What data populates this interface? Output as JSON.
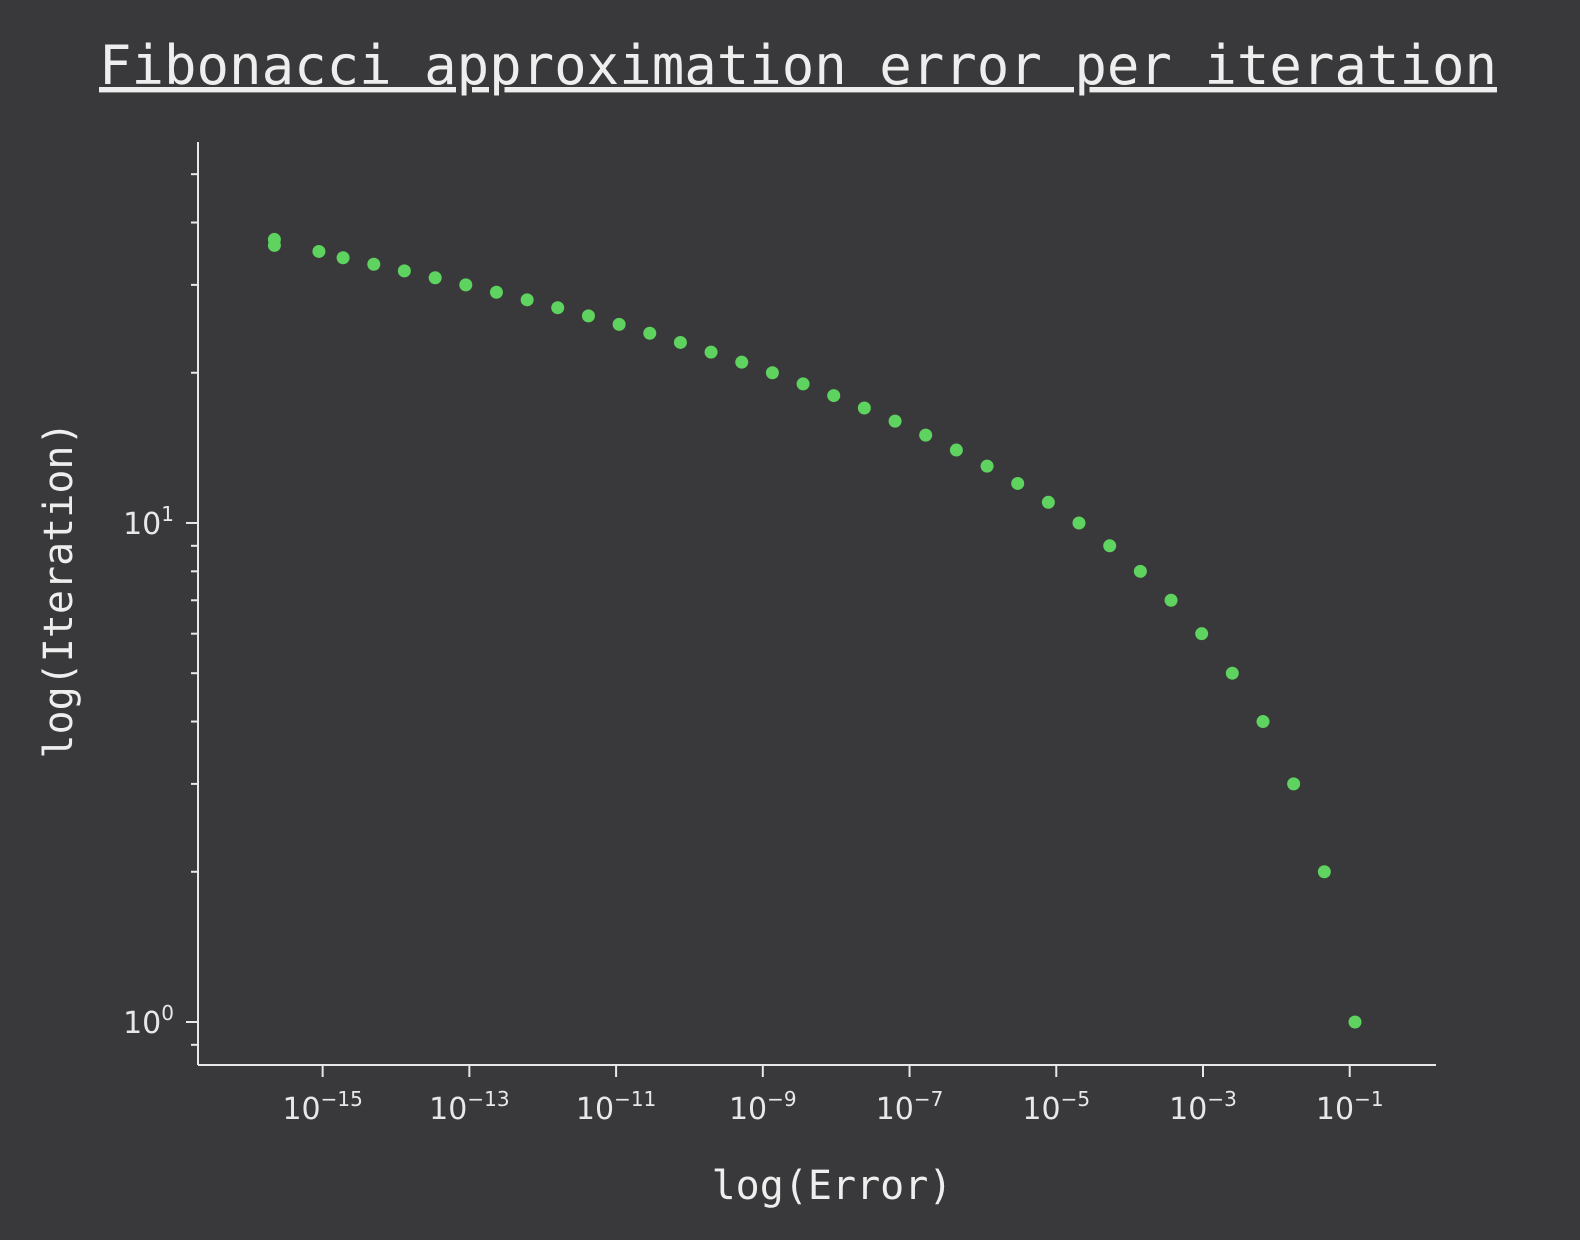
{
  "chart_data": {
    "type": "scatter",
    "title": "Fibonacci approximation error per iteration",
    "xlabel": "log(Error)",
    "ylabel": "log(Iteration)",
    "xscale": "log",
    "yscale": "log",
    "xlim": [
      2e-17,
      1.5
    ],
    "ylim": [
      0.82,
      58
    ],
    "grid": false,
    "marker_color": "#5fd35f",
    "background_color": "#39393b",
    "x_ticks": [
      {
        "base": "10",
        "exp": "−15",
        "value": 1e-15
      },
      {
        "base": "10",
        "exp": "−13",
        "value": 1e-13
      },
      {
        "base": "10",
        "exp": "−11",
        "value": 1e-11
      },
      {
        "base": "10",
        "exp": "−9",
        "value": 1e-09
      },
      {
        "base": "10",
        "exp": "−7",
        "value": 1e-07
      },
      {
        "base": "10",
        "exp": "−5",
        "value": 1e-05
      },
      {
        "base": "10",
        "exp": "−3",
        "value": 0.001
      },
      {
        "base": "10",
        "exp": "−1",
        "value": 0.1
      }
    ],
    "y_ticks": [
      {
        "base": "10",
        "exp": "0",
        "value": 1
      },
      {
        "base": "10",
        "exp": "1",
        "value": 10
      }
    ],
    "y_minor_ticks": [
      0.9,
      2,
      3,
      4,
      5,
      6,
      7,
      8,
      9,
      20,
      30,
      40,
      50
    ],
    "points": [
      {
        "x": 0.118,
        "y": 1
      },
      {
        "x": 0.0451,
        "y": 2
      },
      {
        "x": 0.0172,
        "y": 3
      },
      {
        "x": 0.00658,
        "y": 4
      },
      {
        "x": 0.00251,
        "y": 5
      },
      {
        "x": 0.00096,
        "y": 6
      },
      {
        "x": 0.000367,
        "y": 7
      },
      {
        "x": 0.00014,
        "y": 8
      },
      {
        "x": 5.35e-05,
        "y": 9
      },
      {
        "x": 2.04e-05,
        "y": 10
      },
      {
        "x": 7.8e-06,
        "y": 11
      },
      {
        "x": 2.98e-06,
        "y": 12
      },
      {
        "x": 1.14e-06,
        "y": 13
      },
      {
        "x": 4.35e-07,
        "y": 14
      },
      {
        "x": 1.66e-07,
        "y": 15
      },
      {
        "x": 6.35e-08,
        "y": 16
      },
      {
        "x": 2.42e-08,
        "y": 17
      },
      {
        "x": 9.26e-09,
        "y": 18
      },
      {
        "x": 3.54e-09,
        "y": 19
      },
      {
        "x": 1.35e-09,
        "y": 20
      },
      {
        "x": 5.16e-10,
        "y": 21
      },
      {
        "x": 1.97e-10,
        "y": 22
      },
      {
        "x": 7.53e-11,
        "y": 23
      },
      {
        "x": 2.88e-11,
        "y": 24
      },
      {
        "x": 1.1e-11,
        "y": 25
      },
      {
        "x": 4.2e-12,
        "y": 26
      },
      {
        "x": 1.6e-12,
        "y": 27
      },
      {
        "x": 6.13e-13,
        "y": 28
      },
      {
        "x": 2.34e-13,
        "y": 29
      },
      {
        "x": 8.94e-14,
        "y": 30
      },
      {
        "x": 3.42e-14,
        "y": 31
      },
      {
        "x": 1.3e-14,
        "y": 32
      },
      {
        "x": 4.98e-15,
        "y": 33
      },
      {
        "x": 1.9e-15,
        "y": 34
      },
      {
        "x": 8.9e-16,
        "y": 35
      },
      {
        "x": 2.2e-16,
        "y": 36
      },
      {
        "x": 2.2e-16,
        "y": 37
      }
    ]
  }
}
